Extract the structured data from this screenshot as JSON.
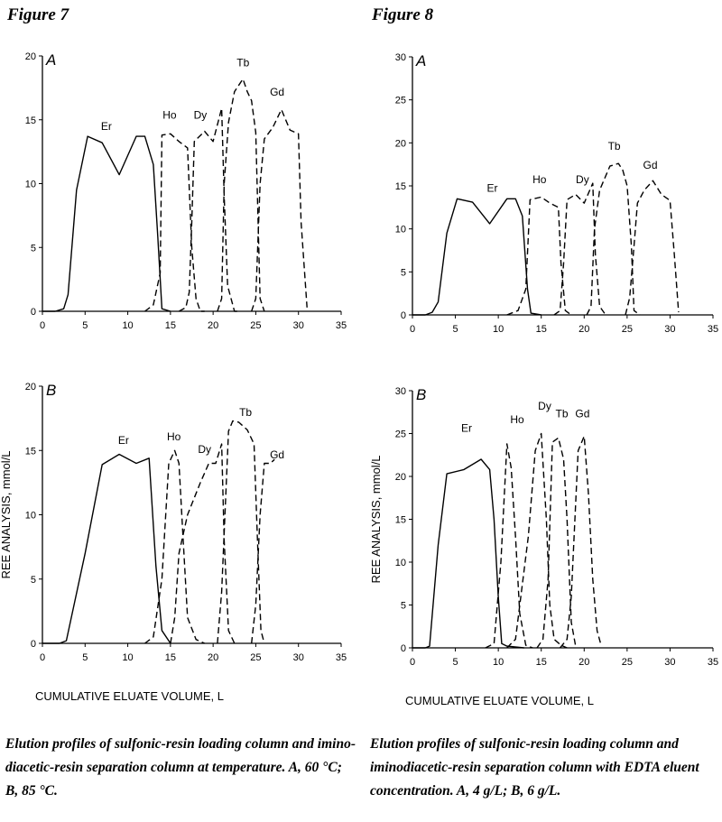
{
  "figure7": {
    "title": "Figure 7",
    "caption": "Elution profiles of sulfonic-resin loading column and imino-diacetic-resin separation column at temperature.  A, 60 °C; B, 85 °C."
  },
  "figure8": {
    "title": "Figure 8",
    "caption": "Elution profiles of sulfonic-resin loading column and iminodiacetic-resin separation column with EDTA eluent concentration.  A, 4 g/L; B, 6 g/L."
  },
  "chart_data": [
    {
      "id": "fig7A",
      "type": "line",
      "panel": "A",
      "xlim": [
        0,
        35
      ],
      "ylim": [
        0,
        20
      ],
      "xticks": [
        0,
        5,
        10,
        15,
        20,
        25,
        30,
        35
      ],
      "yticks": [
        0,
        5,
        10,
        15,
        20
      ],
      "ylabel": "",
      "xlabel": "",
      "series": [
        {
          "name": "Er",
          "dash": "solid",
          "points": [
            [
              0,
              0
            ],
            [
              1.5,
              0
            ],
            [
              2.5,
              0.2
            ],
            [
              3,
              1.3
            ],
            [
              4,
              9.5
            ],
            [
              5.3,
              13.7
            ],
            [
              7,
              13.2
            ],
            [
              9,
              10.7
            ],
            [
              11,
              13.7
            ],
            [
              12,
              13.7
            ],
            [
              13,
              11.5
            ],
            [
              13.5,
              6
            ],
            [
              14,
              0.2
            ],
            [
              15,
              0
            ]
          ]
        },
        {
          "name": "Ho",
          "dash": "dash",
          "points": [
            [
              12,
              0
            ],
            [
              13,
              0.5
            ],
            [
              13.8,
              3
            ],
            [
              14,
              13.8
            ],
            [
              15,
              13.9
            ],
            [
              16,
              13.3
            ],
            [
              17,
              12.8
            ],
            [
              17.5,
              5
            ],
            [
              18,
              1
            ],
            [
              18.5,
              0
            ],
            [
              19,
              0
            ]
          ]
        },
        {
          "name": "Dy",
          "dash": "dash",
          "points": [
            [
              16,
              0
            ],
            [
              16.8,
              0.3
            ],
            [
              17.2,
              1.5
            ],
            [
              17.5,
              7
            ],
            [
              17.8,
              13.3
            ],
            [
              19,
              14.1
            ],
            [
              20,
              13.3
            ],
            [
              21,
              15.9
            ],
            [
              21.3,
              9
            ],
            [
              21.7,
              2
            ],
            [
              22.5,
              0
            ],
            [
              23,
              0
            ]
          ]
        },
        {
          "name": "Tb",
          "dash": "dash",
          "points": [
            [
              20.5,
              0
            ],
            [
              21,
              1
            ],
            [
              21.3,
              10
            ],
            [
              21.8,
              14.8
            ],
            [
              22.5,
              17.2
            ],
            [
              23.5,
              18.2
            ],
            [
              24,
              17.2
            ],
            [
              24.5,
              16.5
            ],
            [
              25,
              14
            ],
            [
              25.5,
              1
            ],
            [
              26,
              0
            ]
          ]
        },
        {
          "name": "Gd",
          "dash": "dash",
          "points": [
            [
              24.5,
              0
            ],
            [
              25,
              1
            ],
            [
              25.5,
              10
            ],
            [
              26,
              13.5
            ],
            [
              27,
              14.4
            ],
            [
              28,
              15.8
            ],
            [
              29,
              14.2
            ],
            [
              30,
              13.9
            ],
            [
              30.3,
              7
            ],
            [
              31,
              0.3
            ]
          ]
        }
      ],
      "labels": [
        [
          "Er",
          7.5,
          14.2
        ],
        [
          "Ho",
          14.9,
          15.1
        ],
        [
          "Dy",
          18.5,
          15.1
        ],
        [
          "Tb",
          23.5,
          19.2
        ],
        [
          "Gd",
          27.5,
          16.9
        ]
      ]
    },
    {
      "id": "fig7B",
      "type": "line",
      "panel": "B",
      "xlim": [
        0,
        35
      ],
      "ylim": [
        0,
        20
      ],
      "xticks": [
        0,
        5,
        10,
        15,
        20,
        25,
        30,
        35
      ],
      "yticks": [
        0,
        5,
        10,
        15,
        20
      ],
      "ylabel": "REE ANALYSIS, mmol/L",
      "xlabel": "CUMULATIVE ELUATE VOLUME, L",
      "series": [
        {
          "name": "Er",
          "dash": "solid",
          "points": [
            [
              0,
              0
            ],
            [
              2,
              0
            ],
            [
              2.8,
              0.2
            ],
            [
              5,
              7
            ],
            [
              7,
              13.9
            ],
            [
              9,
              14.7
            ],
            [
              11,
              14
            ],
            [
              12.5,
              14.4
            ],
            [
              13.3,
              6
            ],
            [
              14,
              1
            ],
            [
              15,
              0
            ]
          ]
        },
        {
          "name": "Ho",
          "dash": "dash",
          "points": [
            [
              12,
              0
            ],
            [
              13,
              0.5
            ],
            [
              14,
              5
            ],
            [
              14.8,
              14
            ],
            [
              15.5,
              15
            ],
            [
              16,
              14
            ],
            [
              16.5,
              8
            ],
            [
              17,
              2
            ],
            [
              18,
              0.3
            ],
            [
              19,
              0
            ]
          ]
        },
        {
          "name": "Dy",
          "dash": "dash",
          "points": [
            [
              15,
              0
            ],
            [
              15.5,
              2
            ],
            [
              16,
              7
            ],
            [
              17,
              10
            ],
            [
              18.5,
              12.5
            ],
            [
              19.5,
              14
            ],
            [
              20.3,
              14
            ],
            [
              21,
              15.5
            ],
            [
              21.3,
              8
            ],
            [
              21.8,
              1
            ],
            [
              22.5,
              0
            ]
          ]
        },
        {
          "name": "Tb",
          "dash": "dash",
          "points": [
            [
              20.5,
              0
            ],
            [
              21,
              4
            ],
            [
              21.8,
              16.5
            ],
            [
              22.3,
              17.3
            ],
            [
              23,
              17.2
            ],
            [
              24,
              16.6
            ],
            [
              24.8,
              15.5
            ],
            [
              25.2,
              8
            ],
            [
              25.6,
              1
            ],
            [
              26,
              0
            ]
          ]
        },
        {
          "name": "Gd",
          "dash": "dash",
          "points": [
            [
              24.5,
              0
            ],
            [
              25,
              3
            ],
            [
              25.5,
              10
            ],
            [
              26,
              14
            ],
            [
              26.7,
              14
            ],
            [
              27.2,
              14.3
            ]
          ]
        }
      ],
      "labels": [
        [
          "Er",
          9.5,
          15.5
        ],
        [
          "Ho",
          15.4,
          15.8
        ],
        [
          "Dy",
          19,
          14.8
        ],
        [
          "Tb",
          23.8,
          17.7
        ],
        [
          "Gd",
          27.5,
          14.4
        ]
      ]
    },
    {
      "id": "fig8A",
      "type": "line",
      "panel": "A",
      "xlim": [
        0,
        35
      ],
      "ylim": [
        0,
        30
      ],
      "xticks": [
        0,
        5,
        10,
        15,
        20,
        25,
        30,
        35
      ],
      "yticks": [
        0,
        5,
        10,
        15,
        20,
        25,
        30
      ],
      "ylabel": "",
      "xlabel": "",
      "series": [
        {
          "name": "Er",
          "dash": "solid",
          "points": [
            [
              0,
              0
            ],
            [
              1.5,
              0
            ],
            [
              2.3,
              0.3
            ],
            [
              3,
              1.5
            ],
            [
              4,
              9.5
            ],
            [
              5.2,
              13.5
            ],
            [
              7,
              13.1
            ],
            [
              9,
              10.6
            ],
            [
              11,
              13.5
            ],
            [
              12,
              13.5
            ],
            [
              12.8,
              11.5
            ],
            [
              13.4,
              3
            ],
            [
              13.8,
              0.2
            ],
            [
              15,
              0
            ]
          ]
        },
        {
          "name": "Ho",
          "dash": "dash",
          "points": [
            [
              11,
              0
            ],
            [
              12.3,
              0.5
            ],
            [
              13.2,
              3
            ],
            [
              13.7,
              13.4
            ],
            [
              15,
              13.7
            ],
            [
              16,
              13
            ],
            [
              17,
              12.5
            ],
            [
              17.3,
              6
            ],
            [
              17.8,
              0.5
            ],
            [
              18.5,
              0
            ]
          ]
        },
        {
          "name": "Dy",
          "dash": "dash",
          "points": [
            [
              16.5,
              0
            ],
            [
              17.2,
              0.5
            ],
            [
              17.6,
              6
            ],
            [
              18,
              13.4
            ],
            [
              19,
              14
            ],
            [
              20,
              13
            ],
            [
              21,
              15.3
            ],
            [
              21.3,
              7
            ],
            [
              21.8,
              1
            ],
            [
              22.5,
              0
            ]
          ]
        },
        {
          "name": "Tb",
          "dash": "dash",
          "points": [
            [
              20.3,
              0
            ],
            [
              20.8,
              1
            ],
            [
              21.2,
              10
            ],
            [
              21.8,
              14.5
            ],
            [
              23,
              17.3
            ],
            [
              24,
              17.6
            ],
            [
              24.5,
              16.8
            ],
            [
              25,
              15
            ],
            [
              25.5,
              8
            ],
            [
              25.8,
              0.5
            ],
            [
              26.5,
              0
            ]
          ]
        },
        {
          "name": "Gd",
          "dash": "dash",
          "points": [
            [
              24.8,
              0
            ],
            [
              25.3,
              2
            ],
            [
              25.8,
              8
            ],
            [
              26.2,
              13
            ],
            [
              27,
              14.5
            ],
            [
              28,
              15.6
            ],
            [
              29,
              14
            ],
            [
              30,
              13.3
            ],
            [
              30.5,
              7
            ],
            [
              31,
              0.3
            ]
          ]
        }
      ],
      "labels": [
        [
          "Er",
          9.3,
          14.3
        ],
        [
          "Ho",
          14.8,
          15.3
        ],
        [
          "Dy",
          19.8,
          15.3
        ],
        [
          "Tb",
          23.5,
          19.2
        ],
        [
          "Gd",
          27.7,
          17
        ]
      ]
    },
    {
      "id": "fig8B",
      "type": "line",
      "panel": "B",
      "xlim": [
        0,
        35
      ],
      "ylim": [
        0,
        30
      ],
      "xticks": [
        0,
        5,
        10,
        15,
        20,
        25,
        30,
        35
      ],
      "yticks": [
        0,
        5,
        10,
        15,
        20,
        25,
        30
      ],
      "ylabel": "REE ANALYSIS, mmol/L",
      "xlabel": "CUMULATIVE ELUATE VOLUME, L",
      "series": [
        {
          "name": "Er",
          "dash": "solid",
          "points": [
            [
              0,
              0
            ],
            [
              1.5,
              0
            ],
            [
              2,
              0.2
            ],
            [
              3,
              12
            ],
            [
              4,
              20.3
            ],
            [
              6,
              20.8
            ],
            [
              8,
              22
            ],
            [
              9,
              20.8
            ],
            [
              9.5,
              15
            ],
            [
              10,
              6
            ],
            [
              10.4,
              0.5
            ],
            [
              11,
              0.2
            ],
            [
              13,
              0
            ]
          ]
        },
        {
          "name": "Ho",
          "dash": "dash",
          "points": [
            [
              8.5,
              0
            ],
            [
              9.5,
              0.5
            ],
            [
              10.3,
              10
            ],
            [
              11,
              23.8
            ],
            [
              11.5,
              21
            ],
            [
              12,
              13
            ],
            [
              12.5,
              4
            ],
            [
              13.2,
              0.3
            ],
            [
              14,
              0
            ]
          ]
        },
        {
          "name": "Dy",
          "dash": "dash",
          "points": [
            [
              11,
              0
            ],
            [
              12,
              1
            ],
            [
              13.5,
              13
            ],
            [
              14.3,
              23
            ],
            [
              15,
              25
            ],
            [
              15.6,
              15
            ],
            [
              16,
              5
            ],
            [
              16.5,
              1
            ],
            [
              17.3,
              0.3
            ],
            [
              18,
              0
            ]
          ]
        },
        {
          "name": "Tb",
          "dash": "dash",
          "points": [
            [
              14.5,
              0
            ],
            [
              15.2,
              1
            ],
            [
              15.8,
              8
            ],
            [
              16.3,
              24
            ],
            [
              17,
              24.5
            ],
            [
              17.6,
              22
            ],
            [
              18,
              15
            ],
            [
              18.5,
              3
            ],
            [
              19,
              0.2
            ]
          ]
        },
        {
          "name": "Gd",
          "dash": "dash",
          "points": [
            [
              17.2,
              0
            ],
            [
              18,
              1
            ],
            [
              18.5,
              6
            ],
            [
              19.3,
              23
            ],
            [
              20,
              24.7
            ],
            [
              20.5,
              18
            ],
            [
              21,
              8
            ],
            [
              21.5,
              2
            ],
            [
              22,
              0.2
            ]
          ]
        }
      ],
      "labels": [
        [
          "Er",
          6.3,
          25.2
        ],
        [
          "Ho",
          12.2,
          26.2
        ],
        [
          "Dy",
          15.4,
          27.8
        ],
        [
          "Tb",
          17.4,
          26.9
        ],
        [
          "Gd",
          19.8,
          26.9
        ]
      ]
    }
  ]
}
